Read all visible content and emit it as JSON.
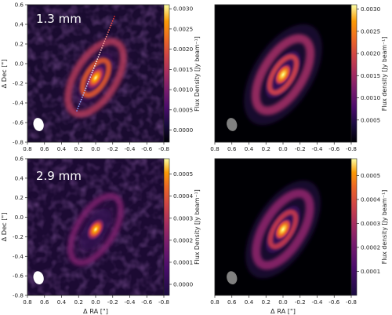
{
  "chart_data": [
    {
      "type": "heatmap",
      "panel": "top-left",
      "annotation": "1.3 mm",
      "xlabel": "",
      "ylabel": "Δ Dec [\"]",
      "xlim": [
        0.8,
        -0.8
      ],
      "ylim": [
        -0.8,
        0.6
      ],
      "x_ticks": [
        "0.8",
        "0.6",
        "0.4",
        "0.2",
        "0.0",
        "-0.2",
        "-0.4",
        "-0.6",
        "-0.8"
      ],
      "y_ticks": [
        "0.6",
        "0.4",
        "0.2",
        "0.0",
        "-0.2",
        "-0.4",
        "-0.6",
        "-0.8"
      ],
      "colorbar": {
        "label": "Flux Density [Jy beam⁻¹]",
        "range": [
          -0.0003,
          0.0031
        ],
        "ticks": [
          "0.0030",
          "0.0025",
          "0.0020",
          "0.0015",
          "0.0010",
          "0.0005",
          "0.0000"
        ]
      },
      "colormap": "inferno",
      "beam": {
        "x": 0.67,
        "y": -0.62,
        "color": "#ffffff"
      },
      "cut_line": {
        "from": [
          0.22,
          -0.48
        ],
        "to": [
          -0.22,
          0.48
        ]
      }
    },
    {
      "type": "heatmap",
      "panel": "top-right",
      "xlabel": "",
      "ylabel": "",
      "xlim": [
        0.8,
        -0.8
      ],
      "ylim": [
        -0.8,
        0.6
      ],
      "x_ticks": [
        "0.8",
        "0.6",
        "0.4",
        "0.2",
        "0.0",
        "-0.2",
        "-0.4",
        "-0.6",
        "-0.8"
      ],
      "y_ticks": [],
      "colorbar": {
        "label": "Flux density [Jy beam⁻¹]",
        "range": [
          0.0,
          0.0031
        ],
        "ticks": [
          "0.0030",
          "0.0025",
          "0.0020",
          "0.0015",
          "0.0010",
          "0.0005"
        ]
      },
      "colormap": "inferno",
      "beam": {
        "x": 0.6,
        "y": -0.62,
        "color": "#808080"
      }
    },
    {
      "type": "heatmap",
      "panel": "bottom-left",
      "annotation": "2.9 mm",
      "xlabel": "Δ RA [\"]",
      "ylabel": "Δ Dec [\"]",
      "xlim": [
        0.8,
        -0.8
      ],
      "ylim": [
        -0.8,
        0.6
      ],
      "x_ticks": [
        "0.8",
        "0.6",
        "0.4",
        "0.2",
        "0.0",
        "-0.2",
        "-0.4",
        "-0.6",
        "-0.8"
      ],
      "y_ticks": [
        "0.6",
        "0.4",
        "0.2",
        "0.0",
        "-0.2",
        "-0.4",
        "-0.6",
        "-0.8"
      ],
      "colorbar": {
        "label": "Flux Density [Jy beam⁻¹]",
        "range": [
          -5e-05,
          0.00057
        ],
        "ticks": [
          "0.0005",
          "0.0004",
          "0.0003",
          "0.0002",
          "0.0001",
          "0.0000"
        ]
      },
      "colormap": "inferno",
      "beam": {
        "x": 0.67,
        "y": -0.62,
        "color": "#ffffff"
      }
    },
    {
      "type": "heatmap",
      "panel": "bottom-right",
      "xlabel": "Δ RA [\"]",
      "ylabel": "",
      "xlim": [
        0.8,
        -0.8
      ],
      "ylim": [
        -0.8,
        0.6
      ],
      "x_ticks": [
        "0.8",
        "0.6",
        "0.4",
        "0.2",
        "0.0",
        "-0.2",
        "-0.4",
        "-0.6",
        "-0.8"
      ],
      "y_ticks": [],
      "colorbar": {
        "label": "Flux density [Jy beam⁻¹]",
        "range": [
          0.0,
          0.00057
        ],
        "ticks": [
          "0.0005",
          "0.0004",
          "0.0003",
          "0.0002",
          "0.0001"
        ]
      },
      "colormap": "inferno",
      "beam": {
        "x": 0.6,
        "y": -0.62,
        "color": "#808080"
      }
    }
  ]
}
